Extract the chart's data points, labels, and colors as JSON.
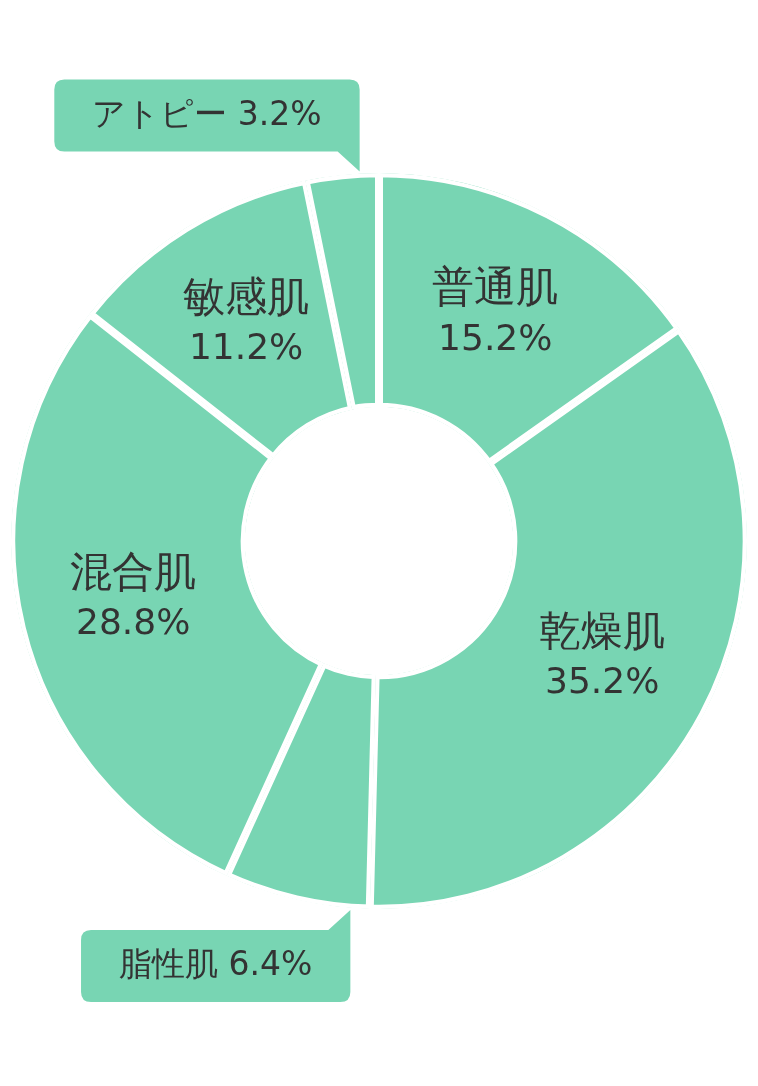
{
  "chart_data": {
    "type": "donut",
    "categories": [
      "普通肌",
      "乾燥肌",
      "脂性肌",
      "混合肌",
      "敏感肌",
      "アトピー"
    ],
    "values": [
      15.2,
      35.2,
      6.4,
      28.8,
      11.2,
      3.2
    ],
    "colors": [
      "#78d5b3",
      "#78d5b3",
      "#78d5b3",
      "#78d5b3",
      "#78d5b3",
      "#78d5b3"
    ],
    "value_labels": [
      "15.2%",
      "35.2%",
      "6.4%",
      "28.8%",
      "11.2%",
      "3.2%"
    ]
  }
}
